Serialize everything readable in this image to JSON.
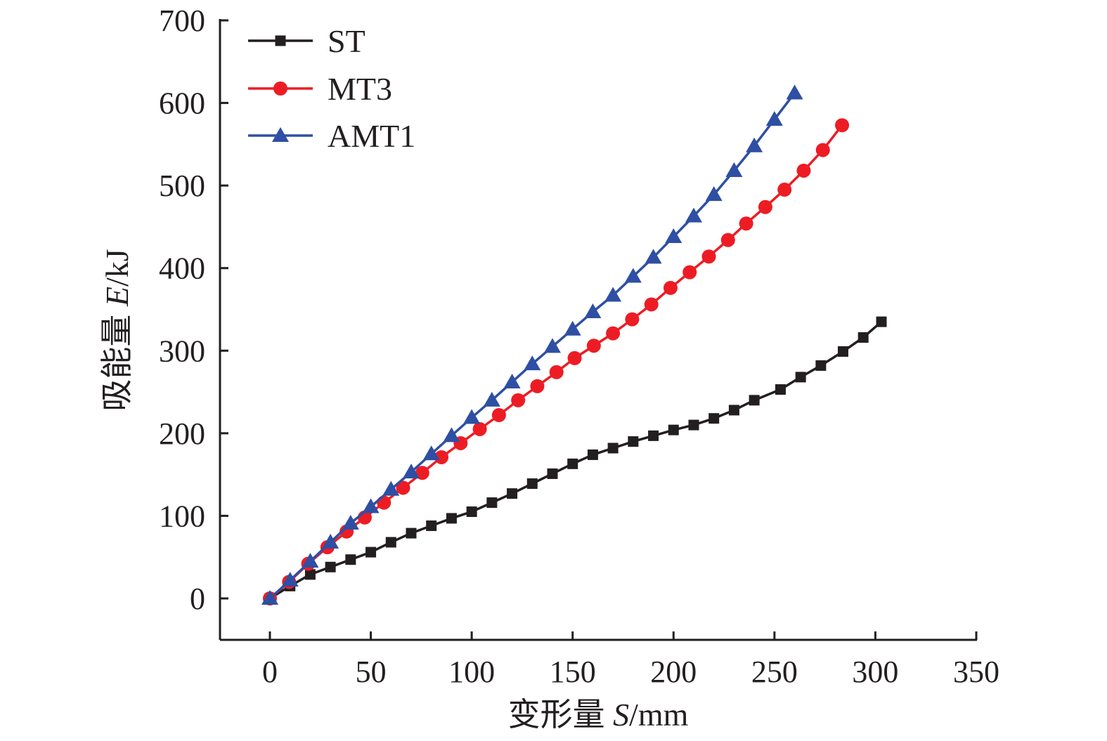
{
  "chart_data": {
    "type": "line",
    "title": "",
    "xlabel": "变形量 S/mm",
    "xlabel_parts": [
      {
        "text": "变形量 ",
        "italic": false
      },
      {
        "text": "S",
        "italic": true
      },
      {
        "text": "/mm",
        "italic": false
      }
    ],
    "ylabel": "吸能量 E/kJ",
    "ylabel_parts": [
      {
        "text": "吸能量 ",
        "italic": false
      },
      {
        "text": "E",
        "italic": true
      },
      {
        "text": "/kJ",
        "italic": false
      }
    ],
    "xlim": [
      -25,
      350
    ],
    "ylim": [
      -50,
      700
    ],
    "xticks": [
      0,
      50,
      100,
      150,
      200,
      250,
      300,
      350
    ],
    "xtick_labels": [
      "0",
      "50",
      "100",
      "150",
      "200",
      "250",
      "300",
      "350"
    ],
    "yticks": [
      0,
      100,
      200,
      300,
      400,
      500,
      600,
      700
    ],
    "ytick_labels": [
      "0",
      "100",
      "200",
      "300",
      "400",
      "500",
      "600",
      "700"
    ],
    "grid": false,
    "legend_position": "top-left",
    "series": [
      {
        "name": "ST",
        "color": "#231f20",
        "marker": "square",
        "x": [
          0,
          10,
          20,
          30,
          40,
          50,
          60,
          70,
          80,
          90,
          100,
          110,
          120,
          130,
          140,
          150,
          160,
          170,
          180,
          190,
          200,
          210,
          220,
          230,
          240,
          253,
          263,
          273,
          284,
          294,
          303
        ],
        "y": [
          0,
          15,
          29,
          38,
          47,
          56,
          68,
          79,
          88,
          97,
          105,
          116,
          127,
          139,
          151,
          163,
          174,
          182,
          190,
          197,
          204,
          210,
          218,
          228,
          240,
          253,
          268,
          282,
          299,
          316,
          335
        ]
      },
      {
        "name": "MT3",
        "color": "#ed1c24",
        "marker": "circle",
        "x": [
          0,
          9.5,
          19,
          28.5,
          38,
          47,
          56.5,
          66,
          75.5,
          85,
          94.5,
          104,
          113.5,
          123,
          132.5,
          142,
          151,
          160.5,
          170,
          179.5,
          189,
          198.5,
          208,
          217.5,
          227,
          236,
          245.5,
          255,
          264.5,
          274,
          283.5
        ],
        "y": [
          0,
          20,
          42,
          62,
          81,
          98,
          116,
          134,
          152,
          171,
          188,
          205,
          222,
          240,
          257,
          274,
          291,
          306,
          321,
          338,
          356,
          376,
          395,
          414,
          434,
          454,
          474,
          495,
          518,
          543,
          573
        ]
      },
      {
        "name": "AMT1",
        "color": "#2e4fa3",
        "marker": "triangle",
        "x": [
          0,
          10,
          20,
          30,
          40,
          50,
          60,
          70,
          80,
          90,
          100,
          110,
          120,
          130,
          140,
          150,
          160,
          170,
          180,
          190,
          200,
          210,
          220,
          230,
          240,
          250,
          260
        ],
        "y": [
          0,
          22,
          45,
          68,
          91,
          111,
          132,
          153,
          175,
          197,
          219,
          240,
          262,
          284,
          305,
          326,
          347,
          367,
          390,
          413,
          438,
          463,
          489,
          518,
          548,
          580,
          612
        ]
      }
    ]
  }
}
